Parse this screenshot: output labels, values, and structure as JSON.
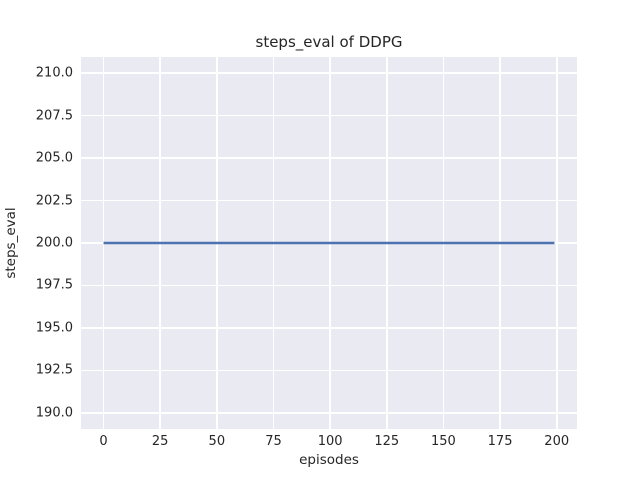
{
  "chart_data": {
    "type": "line",
    "title": "steps_eval of DDPG",
    "xlabel": "episodes",
    "ylabel": "steps_eval",
    "xlim": [
      -9.95,
      208.95
    ],
    "ylim": [
      189.05,
      210.95
    ],
    "x_ticks": [
      0,
      25,
      50,
      75,
      100,
      125,
      150,
      175,
      200
    ],
    "x_tick_labels": [
      "0",
      "25",
      "50",
      "75",
      "100",
      "125",
      "150",
      "175",
      "200"
    ],
    "y_ticks": [
      190.0,
      192.5,
      195.0,
      197.5,
      200.0,
      202.5,
      205.0,
      207.5,
      210.0
    ],
    "y_tick_labels": [
      "190.0",
      "192.5",
      "195.0",
      "197.5",
      "200.0",
      "202.5",
      "205.0",
      "207.5",
      "210.0"
    ],
    "grid": true,
    "legend": false,
    "series": [
      {
        "name": "DDPG steps_eval",
        "color": "#4C72B0",
        "x": [
          0,
          199
        ],
        "y": [
          200,
          200
        ],
        "description": "constant value of 200 steps across all episodes 0-199"
      }
    ],
    "colors": {
      "figure_background": "#FFFFFF",
      "axes_background": "#EAEAF2",
      "gridline": "#FFFFFF",
      "text": "#262626"
    }
  }
}
